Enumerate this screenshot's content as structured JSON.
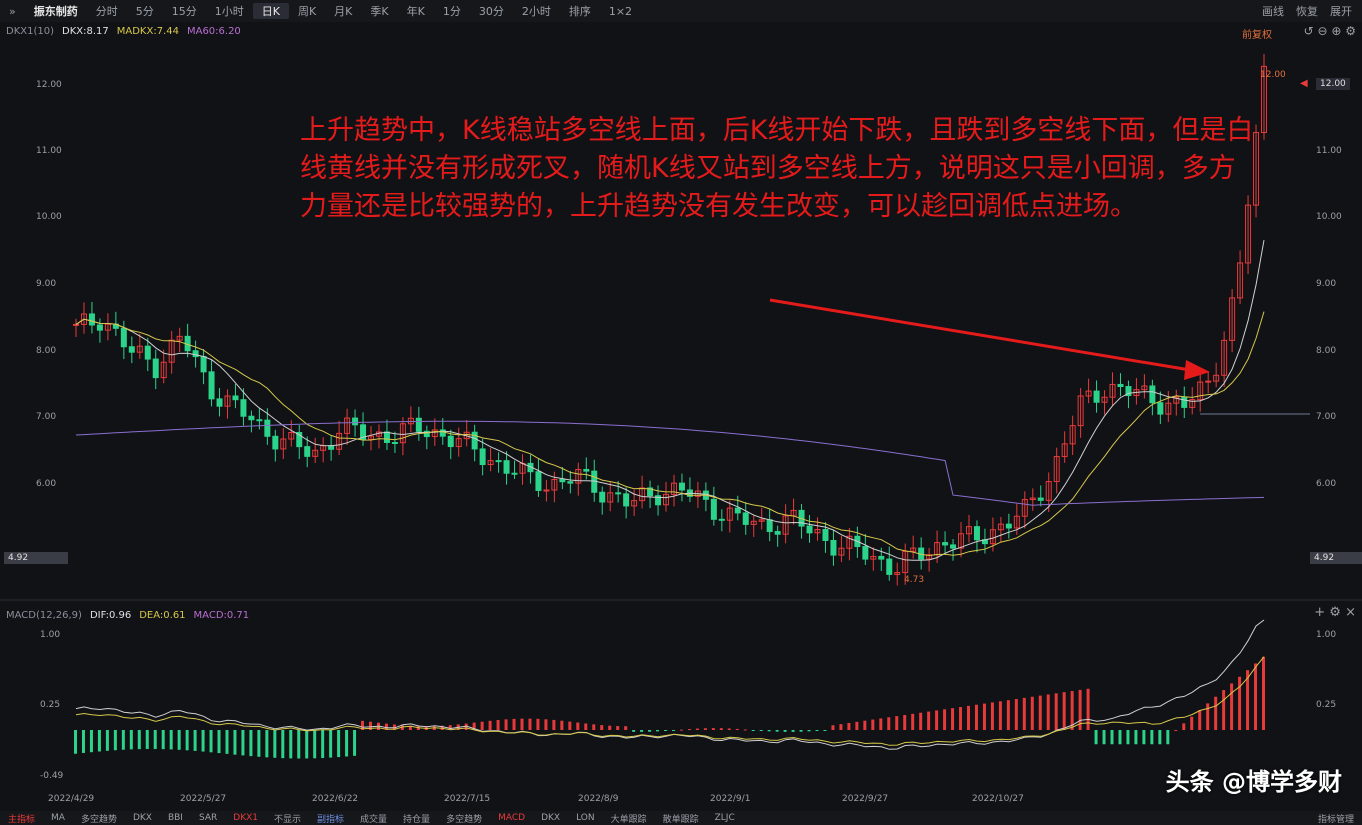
{
  "toolbar": {
    "stock_name": "振东制药",
    "items": [
      "分时",
      "5分",
      "15分",
      "1小时",
      "日K",
      "周K",
      "月K",
      "季K",
      "年K",
      "1分",
      "30分",
      "2小时",
      "排序",
      "1×2"
    ],
    "active": "日K",
    "right": [
      "画线",
      "恢复",
      "展开"
    ]
  },
  "main_legend": {
    "dkx1": "DKX1(10)",
    "dkx": "DKX:8.17",
    "madkx": "MADKX:7.44",
    "ma60": "MA60:6.20",
    "fuquan": "前复权"
  },
  "price_axis": [
    "12.00",
    "11.00",
    "10.00",
    "9.00",
    "8.00",
    "7.00",
    "6.00"
  ],
  "price_highlight": "4.92",
  "price_current": "12.00",
  "high_label": "12.00",
  "low_label": "4.73",
  "macd_legend": {
    "name": "MACD(12,26,9)",
    "dif": "DIF:0.96",
    "dea": "DEA:0.61",
    "macd": "MACD:0.71"
  },
  "macd_axis": [
    "1.00",
    "0.25",
    "-0.49"
  ],
  "dates": [
    "2022/4/29",
    "2022/5/27",
    "2022/6/22",
    "2022/7/15",
    "2022/8/9",
    "2022/9/1",
    "2022/9/27",
    "2022/10/27"
  ],
  "bottom_tabs": [
    "主指标",
    "MA",
    "多空趋势",
    "DKX",
    "BBI",
    "SAR",
    "DKX1",
    "不显示",
    "副指标",
    "成交量",
    "持仓量",
    "多空趋势",
    "MACD",
    "DKX",
    "LON",
    "大单跟踪",
    "散单跟踪",
    "ZLJC",
    "指标管理"
  ],
  "annotation": "上升趋势中，K线稳站多空线上面，后K线开始下跌，且跌到多空线下面，但是白线黄线并没有形成死叉，随机K线又站到多空线上方，说明这只是小回调，多方力量还是比较强势的，上升趋势没有发生改变，可以趁回调低点进场。",
  "watermark": "头条 @博学多财",
  "colors": {
    "up": "#e83a3a",
    "down": "#2bd48a",
    "white_line": "#d0d0d0",
    "yellow_line": "#d6c84a",
    "purple_line": "#8a6fd0",
    "annotation": "#e51b1b"
  },
  "chart_data": {
    "type": "candlestick",
    "ylim": [
      4.5,
      12.3
    ],
    "closes": [
      8.3,
      8.5,
      8.0,
      7.8,
      8.2,
      7.5,
      7.2,
      6.9,
      6.7,
      6.5,
      6.9,
      6.8,
      6.8,
      6.9,
      6.8,
      6.6,
      6.4,
      6.2,
      6.1,
      6.2,
      6.0,
      5.8,
      6.0,
      6.0,
      5.8,
      5.6,
      5.5,
      5.6,
      5.4,
      5.2,
      5.1,
      4.9,
      5.1,
      5.3,
      5.3,
      5.5,
      5.7,
      6.3,
      7.2,
      7.5,
      7.4,
      7.3,
      7.2,
      7.6,
      8.9,
      12.0
    ]
  }
}
